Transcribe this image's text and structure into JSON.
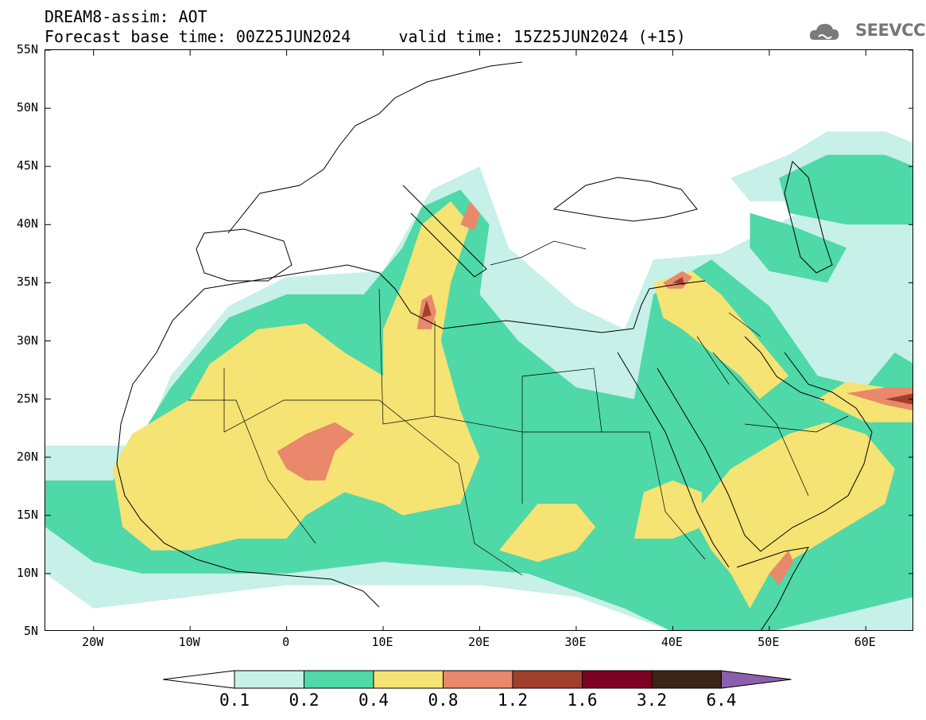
{
  "header": {
    "title": "DREAM8-assim: AOT",
    "forecast_line": "Forecast base time: 00Z25JUN2024     valid time: 15Z25JUN2024 (+15)"
  },
  "logo": {
    "text": "SEEVCCC",
    "icon": "cloud-icon",
    "color": "#777777"
  },
  "axes": {
    "lon_range": [
      -25,
      65
    ],
    "lat_range": [
      5,
      55
    ],
    "lat_ticks": [
      {
        "value": 55,
        "label": "55N"
      },
      {
        "value": 50,
        "label": "50N"
      },
      {
        "value": 45,
        "label": "45N"
      },
      {
        "value": 40,
        "label": "40N"
      },
      {
        "value": 35,
        "label": "35N"
      },
      {
        "value": 30,
        "label": "30N"
      },
      {
        "value": 25,
        "label": "25N"
      },
      {
        "value": 20,
        "label": "20N"
      },
      {
        "value": 15,
        "label": "15N"
      },
      {
        "value": 10,
        "label": "10N"
      },
      {
        "value": 5,
        "label": "5N"
      }
    ],
    "lon_ticks": [
      {
        "value": -20,
        "label": "20W"
      },
      {
        "value": -10,
        "label": "10W"
      },
      {
        "value": 0,
        "label": "0"
      },
      {
        "value": 10,
        "label": "10E"
      },
      {
        "value": 20,
        "label": "20E"
      },
      {
        "value": 30,
        "label": "30E"
      },
      {
        "value": 40,
        "label": "40E"
      },
      {
        "value": 50,
        "label": "50E"
      },
      {
        "value": 60,
        "label": "60E"
      }
    ]
  },
  "colorbar": {
    "levels": [
      "0.1",
      "0.2",
      "0.4",
      "0.8",
      "1.2",
      "1.6",
      "3.2",
      "6.4"
    ],
    "colors": [
      "#c6f0e8",
      "#4fd8a8",
      "#f5e373",
      "#e9886a",
      "#a2402e",
      "#7e0022",
      "#3b2316"
    ],
    "under_color": "#ffffff",
    "over_color": "#8b5fae"
  },
  "aot_regions": [
    {
      "level": "0.1-0.2",
      "color": "#c6f0e8",
      "points": [
        [
          -25,
          21
        ],
        [
          -15,
          21
        ],
        [
          -12,
          27
        ],
        [
          -6,
          33
        ],
        [
          0,
          35.5
        ],
        [
          10,
          36
        ],
        [
          15,
          43
        ],
        [
          20,
          45
        ],
        [
          23,
          38
        ],
        [
          30,
          33
        ],
        [
          35,
          31
        ],
        [
          38,
          37
        ],
        [
          45,
          37.5
        ],
        [
          53,
          41
        ],
        [
          57,
          45
        ],
        [
          62,
          48
        ],
        [
          65,
          46
        ],
        [
          65,
          5
        ],
        [
          40,
          5
        ],
        [
          30,
          8
        ],
        [
          20,
          9
        ],
        [
          10,
          9
        ],
        [
          0,
          9
        ],
        [
          -20,
          7
        ],
        [
          -25,
          10
        ]
      ]
    },
    {
      "level": "0.1-0.2",
      "color": "#c6f0e8",
      "points": [
        [
          46,
          44
        ],
        [
          52,
          46
        ],
        [
          56,
          48
        ],
        [
          62,
          48
        ],
        [
          65,
          47
        ],
        [
          65,
          43
        ],
        [
          58,
          42
        ],
        [
          52,
          42
        ],
        [
          48,
          42
        ]
      ]
    },
    {
      "level": "0.2-0.4",
      "color": "#4fd8a8",
      "points": [
        [
          -25,
          18
        ],
        [
          -18,
          18
        ],
        [
          -12,
          26
        ],
        [
          -6,
          32
        ],
        [
          0,
          34
        ],
        [
          8,
          34
        ],
        [
          12,
          38
        ],
        [
          14,
          41.5
        ],
        [
          18,
          43
        ],
        [
          21,
          40
        ],
        [
          20,
          34
        ],
        [
          24,
          30
        ],
        [
          30,
          26
        ],
        [
          36,
          25
        ],
        [
          38,
          34
        ],
        [
          44,
          37
        ],
        [
          50,
          33
        ],
        [
          55,
          27
        ],
        [
          60,
          26
        ],
        [
          63,
          29
        ],
        [
          65,
          28
        ],
        [
          65,
          8
        ],
        [
          50,
          5
        ],
        [
          40,
          5
        ],
        [
          35,
          7
        ],
        [
          25,
          10
        ],
        [
          10,
          11
        ],
        [
          0,
          10
        ],
        [
          -15,
          10
        ],
        [
          -20,
          11
        ],
        [
          -25,
          14
        ]
      ]
    },
    {
      "level": "0.2-0.4",
      "color": "#4fd8a8",
      "points": [
        [
          51,
          44
        ],
        [
          56,
          46
        ],
        [
          62,
          46
        ],
        [
          65,
          45
        ],
        [
          65,
          40
        ],
        [
          58,
          40
        ],
        [
          52,
          41
        ]
      ]
    },
    {
      "level": "0.2-0.4",
      "color": "#4fd8a8",
      "points": [
        [
          48,
          41
        ],
        [
          52,
          40
        ],
        [
          58,
          38
        ],
        [
          56,
          35
        ],
        [
          50,
          36
        ],
        [
          48,
          38
        ]
      ]
    },
    {
      "level": "0.4-0.8",
      "color": "#f5e373",
      "points": [
        [
          -18,
          19
        ],
        [
          -16,
          22
        ],
        [
          -10,
          25
        ],
        [
          -8,
          28
        ],
        [
          -3,
          31
        ],
        [
          2,
          31.5
        ],
        [
          6,
          29
        ],
        [
          10,
          27
        ],
        [
          10,
          31
        ],
        [
          12,
          35
        ],
        [
          14,
          40
        ],
        [
          17,
          42
        ],
        [
          19,
          40
        ],
        [
          17,
          35
        ],
        [
          16,
          30
        ],
        [
          18,
          24
        ],
        [
          20,
          20
        ],
        [
          18,
          16
        ],
        [
          12,
          15
        ],
        [
          10,
          16
        ],
        [
          6,
          17
        ],
        [
          2,
          15
        ],
        [
          0,
          13
        ],
        [
          -5,
          13
        ],
        [
          -10,
          12
        ],
        [
          -14,
          12
        ],
        [
          -17,
          14
        ]
      ]
    },
    {
      "level": "0.4-0.8",
      "color": "#f5e373",
      "points": [
        [
          38,
          35
        ],
        [
          42,
          36
        ],
        [
          45,
          34
        ],
        [
          48,
          31
        ],
        [
          50,
          29
        ],
        [
          52,
          27
        ],
        [
          49,
          25
        ],
        [
          47,
          27
        ],
        [
          44,
          29
        ],
        [
          41,
          31
        ],
        [
          39,
          32
        ]
      ]
    },
    {
      "level": "0.4-0.8",
      "color": "#f5e373",
      "points": [
        [
          42,
          15
        ],
        [
          46,
          19
        ],
        [
          52,
          22
        ],
        [
          56,
          23
        ],
        [
          60,
          22
        ],
        [
          63,
          19
        ],
        [
          62,
          16
        ],
        [
          58,
          14
        ],
        [
          54,
          12
        ],
        [
          50,
          10
        ],
        [
          48,
          7
        ],
        [
          46,
          10
        ],
        [
          44,
          12
        ]
      ]
    },
    {
      "level": "0.4-0.8",
      "color": "#f5e373",
      "points": [
        [
          36,
          13
        ],
        [
          37,
          17
        ],
        [
          40,
          18
        ],
        [
          43,
          17
        ],
        [
          43,
          14
        ],
        [
          40,
          13
        ]
      ]
    },
    {
      "level": "0.4-0.8",
      "color": "#f5e373",
      "points": [
        [
          22,
          12
        ],
        [
          26,
          16
        ],
        [
          30,
          16
        ],
        [
          32,
          14
        ],
        [
          30,
          12
        ],
        [
          26,
          11
        ]
      ]
    },
    {
      "level": "0.4-0.8",
      "color": "#f5e373",
      "points": [
        [
          55,
          25
        ],
        [
          58,
          26.5
        ],
        [
          62,
          26
        ],
        [
          65,
          25.5
        ],
        [
          65,
          23
        ],
        [
          60,
          23
        ]
      ]
    },
    {
      "level": "0.8-1.2",
      "color": "#e9886a",
      "points": [
        [
          -1,
          20.5
        ],
        [
          2,
          22
        ],
        [
          5,
          23
        ],
        [
          7,
          22
        ],
        [
          5,
          20.5
        ],
        [
          4,
          18
        ],
        [
          2,
          18
        ],
        [
          0,
          19
        ]
      ]
    },
    {
      "level": "0.8-1.2",
      "color": "#e9886a",
      "points": [
        [
          13.5,
          31
        ],
        [
          14,
          33.5
        ],
        [
          15,
          34
        ],
        [
          15.5,
          32.5
        ],
        [
          15,
          31
        ]
      ]
    },
    {
      "level": "0.8-1.2",
      "color": "#e9886a",
      "points": [
        [
          18,
          40
        ],
        [
          19,
          42
        ],
        [
          20,
          41
        ],
        [
          19.5,
          39.5
        ]
      ]
    },
    {
      "level": "0.8-1.2",
      "color": "#e9886a",
      "points": [
        [
          39,
          35
        ],
        [
          41,
          36
        ],
        [
          42,
          35.5
        ],
        [
          41,
          34.5
        ],
        [
          39.5,
          34.5
        ]
      ]
    },
    {
      "level": "0.8-1.2",
      "color": "#e9886a",
      "points": [
        [
          50,
          10
        ],
        [
          52,
          12
        ],
        [
          52.5,
          11
        ],
        [
          51,
          9
        ]
      ]
    },
    {
      "level": "0.8-1.2",
      "color": "#e9886a",
      "points": [
        [
          58,
          25.5
        ],
        [
          62,
          26
        ],
        [
          65,
          26
        ],
        [
          65,
          24
        ],
        [
          62,
          24.5
        ]
      ]
    },
    {
      "level": "1.2-1.6",
      "color": "#a2402e",
      "points": [
        [
          14,
          32
        ],
        [
          14.5,
          33.5
        ],
        [
          15,
          32.2
        ]
      ]
    },
    {
      "level": "1.2-1.6",
      "color": "#a2402e",
      "points": [
        [
          40,
          35
        ],
        [
          41,
          35.5
        ],
        [
          41.2,
          34.8
        ]
      ]
    },
    {
      "level": "1.2-1.6",
      "color": "#a2402e",
      "points": [
        [
          62,
          25
        ],
        [
          65,
          25.5
        ],
        [
          65,
          24.5
        ]
      ]
    }
  ]
}
